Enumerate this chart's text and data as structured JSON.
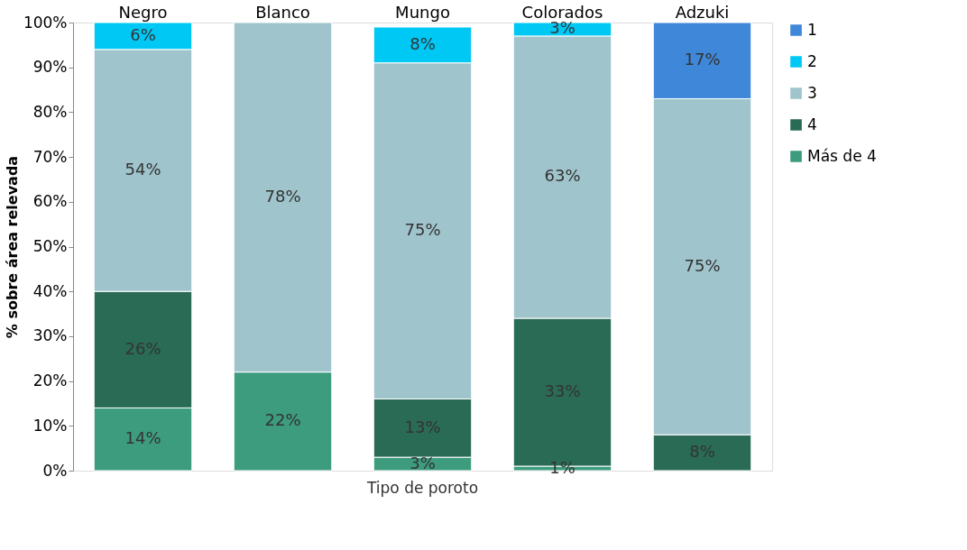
{
  "chart_data": {
    "type": "bar",
    "stacked": true,
    "xlabel": "Tipo de poroto",
    "ylabel": "% sobre área relevada",
    "categories": [
      "Negro",
      "Blanco",
      "Mungo",
      "Colorados",
      "Adzuki"
    ],
    "series": [
      {
        "name": "Más de 4",
        "color": "#3d9b7e",
        "values": [
          14,
          22,
          3,
          1,
          null
        ],
        "value_labels": [
          "14%",
          "22%",
          "3%",
          "1%",
          null
        ]
      },
      {
        "name": "4",
        "color": "#2a6b55",
        "values": [
          26,
          null,
          13,
          33,
          8
        ],
        "value_labels": [
          "26%",
          null,
          "13%",
          "33%",
          "8%"
        ]
      },
      {
        "name": "3",
        "color": "#9fc4cc",
        "values": [
          54,
          78,
          75,
          63,
          75
        ],
        "value_labels": [
          "54%",
          "78%",
          "75%",
          "63%",
          "75%"
        ]
      },
      {
        "name": "2",
        "color": "#00c8f5",
        "values": [
          6,
          null,
          8,
          3,
          null
        ],
        "value_labels": [
          "6%",
          null,
          "8%",
          "3%",
          null
        ]
      },
      {
        "name": "1",
        "color": "#3f87d9",
        "values": [
          null,
          null,
          null,
          null,
          17
        ],
        "value_labels": [
          null,
          null,
          null,
          null,
          "17%"
        ]
      }
    ],
    "ylim": [
      0,
      100
    ],
    "yticks": [
      {
        "value": 0,
        "label": "0%"
      },
      {
        "value": 10,
        "label": "10%"
      },
      {
        "value": 20,
        "label": "20%"
      },
      {
        "value": 30,
        "label": "30%"
      },
      {
        "value": 40,
        "label": "40%"
      },
      {
        "value": 50,
        "label": "50%"
      },
      {
        "value": 60,
        "label": "60%"
      },
      {
        "value": 70,
        "label": "70%"
      },
      {
        "value": 80,
        "label": "80%"
      },
      {
        "value": 90,
        "label": "90%"
      },
      {
        "value": 100,
        "label": "100%"
      }
    ],
    "grid": false,
    "legend": "right"
  }
}
